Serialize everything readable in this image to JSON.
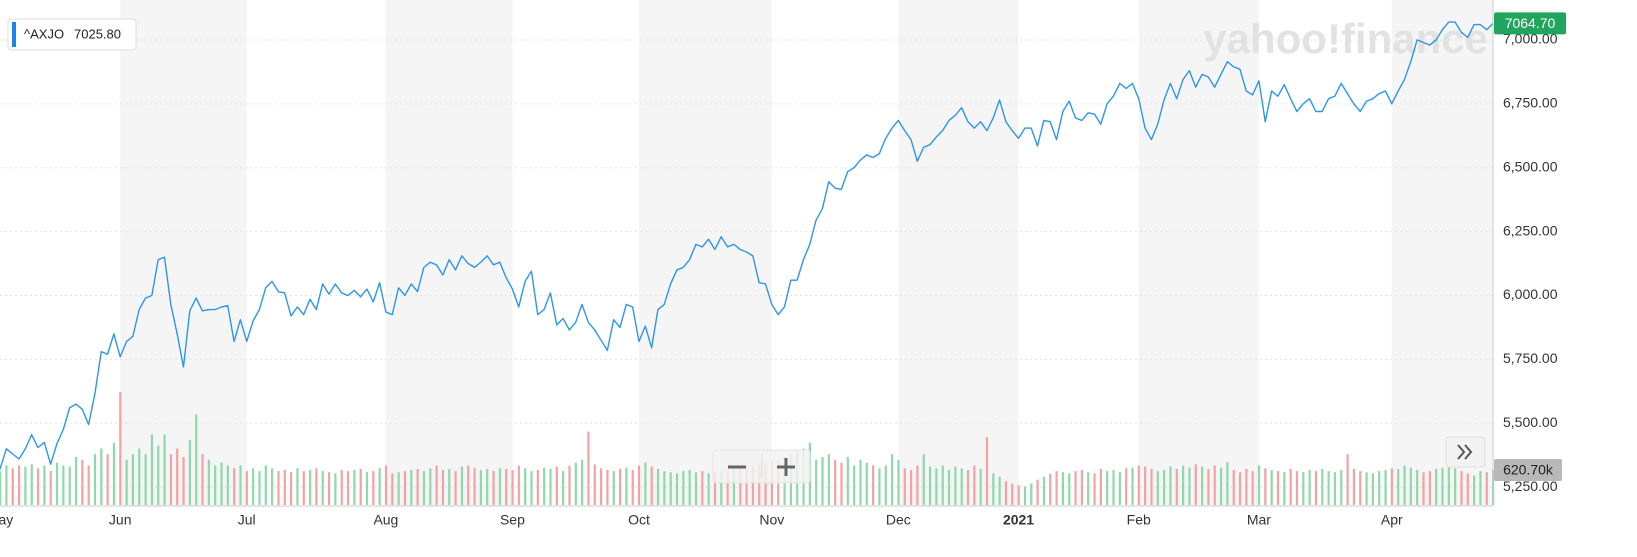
{
  "chart_data": {
    "type": "line",
    "watermark": "yahoo!finance",
    "legend_value": "7025.80",
    "categories": [
      "May",
      null,
      null,
      null,
      null,
      null,
      null,
      null,
      null,
      null,
      null,
      null,
      null,
      null,
      null,
      null,
      null,
      null,
      null,
      "Jun",
      null,
      null,
      null,
      null,
      null,
      null,
      null,
      null,
      null,
      null,
      null,
      null,
      null,
      null,
      null,
      null,
      null,
      null,
      null,
      "Jul",
      null,
      null,
      null,
      null,
      null,
      null,
      null,
      null,
      null,
      null,
      null,
      null,
      null,
      null,
      null,
      null,
      null,
      null,
      null,
      null,
      null,
      "Aug",
      null,
      null,
      null,
      null,
      null,
      null,
      null,
      null,
      null,
      null,
      null,
      null,
      null,
      null,
      null,
      null,
      null,
      null,
      null,
      "Sep",
      null,
      null,
      null,
      null,
      null,
      null,
      null,
      null,
      null,
      null,
      null,
      null,
      null,
      null,
      null,
      null,
      null,
      null,
      null,
      "Oct",
      null,
      null,
      null,
      null,
      null,
      null,
      null,
      null,
      null,
      null,
      null,
      null,
      null,
      null,
      null,
      null,
      null,
      null,
      null,
      null,
      "Nov",
      null,
      null,
      null,
      null,
      null,
      null,
      null,
      null,
      null,
      null,
      null,
      null,
      null,
      null,
      null,
      null,
      null,
      null,
      null,
      "Dec",
      null,
      null,
      null,
      null,
      null,
      null,
      null,
      null,
      null,
      null,
      null,
      null,
      null,
      null,
      null,
      null,
      null,
      null,
      "2021",
      null,
      null,
      null,
      null,
      null,
      null,
      null,
      null,
      null,
      null,
      null,
      null,
      null,
      null,
      null,
      null,
      null,
      null,
      "Feb",
      null,
      null,
      null,
      null,
      null,
      null,
      null,
      null,
      null,
      null,
      null,
      null,
      null,
      null,
      null,
      null,
      null,
      null,
      "Mar",
      null,
      null,
      null,
      null,
      null,
      null,
      null,
      null,
      null,
      null,
      null,
      null,
      null,
      null,
      null,
      null,
      null,
      null,
      null,
      null,
      "Apr",
      null,
      null,
      null,
      null,
      null,
      null,
      null,
      null,
      null,
      null,
      null,
      null,
      null,
      null,
      null,
      null
    ],
    "series": [
      {
        "name": "^AXJO",
        "color": "#2d96eb",
        "last_label": "7064.70",
        "label_color": "#21a55e",
        "values": [
          5320,
          5400,
          5380,
          5360,
          5400,
          5455,
          5405,
          5425,
          5340,
          5420,
          5475,
          5560,
          5575,
          5555,
          5495,
          5615,
          5780,
          5770,
          5850,
          5760,
          5820,
          5840,
          5945,
          5990,
          6000,
          6140,
          6150,
          5965,
          5850,
          5720,
          5940,
          5990,
          5940,
          5945,
          5945,
          5955,
          5960,
          5820,
          5905,
          5820,
          5900,
          5945,
          6030,
          6055,
          6015,
          6010,
          5920,
          5955,
          5925,
          5985,
          5945,
          6045,
          6005,
          6045,
          6010,
          6000,
          6020,
          5995,
          6025,
          5975,
          6050,
          5935,
          5925,
          6030,
          6000,
          6045,
          6015,
          6110,
          6130,
          6120,
          6080,
          6140,
          6100,
          6155,
          6125,
          6110,
          6130,
          6155,
          6120,
          6130,
          6070,
          6025,
          5955,
          6055,
          6095,
          5925,
          5945,
          6010,
          5885,
          5910,
          5865,
          5895,
          5965,
          5895,
          5865,
          5825,
          5785,
          5905,
          5875,
          5965,
          5955,
          5820,
          5880,
          5795,
          5945,
          5965,
          6045,
          6100,
          6110,
          6140,
          6200,
          6190,
          6220,
          6180,
          6230,
          6190,
          6200,
          6180,
          6170,
          6155,
          6050,
          6045,
          5965,
          5925,
          5955,
          6060,
          6060,
          6140,
          6200,
          6295,
          6340,
          6445,
          6420,
          6415,
          6485,
          6500,
          6530,
          6550,
          6540,
          6555,
          6615,
          6655,
          6685,
          6645,
          6610,
          6525,
          6580,
          6590,
          6620,
          6645,
          6685,
          6705,
          6735,
          6680,
          6655,
          6680,
          6645,
          6695,
          6765,
          6680,
          6645,
          6615,
          6655,
          6655,
          6585,
          6685,
          6680,
          6610,
          6720,
          6760,
          6695,
          6685,
          6715,
          6710,
          6670,
          6750,
          6780,
          6830,
          6810,
          6830,
          6770,
          6655,
          6610,
          6670,
          6765,
          6830,
          6770,
          6845,
          6880,
          6815,
          6865,
          6855,
          6815,
          6865,
          6915,
          6895,
          6885,
          6800,
          6785,
          6840,
          6680,
          6800,
          6780,
          6825,
          6770,
          6720,
          6750,
          6770,
          6720,
          6720,
          6770,
          6780,
          6830,
          6790,
          6750,
          6720,
          6760,
          6770,
          6790,
          6800,
          6750,
          6800,
          6845,
          6915,
          7000,
          6990,
          6980,
          7000,
          7040,
          7070,
          7070,
          7030,
          7010,
          7060,
          7060,
          7040,
          7064.7
        ]
      },
      {
        "type": "bar",
        "axis": "y2",
        "up_color": "#8ed8ac",
        "down_color": "#f3a2a4",
        "last_label": "620.70k",
        "values": [
          600000,
          700000,
          650000,
          700000,
          680000,
          720000,
          650000,
          700000,
          600000,
          750000,
          700000,
          680000,
          850000,
          800000,
          700000,
          900000,
          1000000,
          900000,
          1100000,
          2000000,
          800000,
          900000,
          1000000,
          900000,
          1250000,
          1050000,
          1250000,
          900000,
          1000000,
          850000,
          1150000,
          1600000,
          900000,
          800000,
          700000,
          750000,
          700000,
          650000,
          700000,
          600000,
          650000,
          600000,
          700000,
          650000,
          600000,
          620000,
          580000,
          650000,
          600000,
          620000,
          650000,
          600000,
          580000,
          560000,
          620000,
          600000,
          620000,
          640000,
          580000,
          600000,
          650000,
          700000,
          560000,
          580000,
          600000,
          620000,
          640000,
          600000,
          650000,
          700000,
          620000,
          640000,
          600000,
          680000,
          700000,
          660000,
          620000,
          640000,
          600000,
          650000,
          640000,
          620000,
          700000,
          650000,
          600000,
          620000,
          660000,
          640000,
          680000,
          600000,
          700000,
          750000,
          800000,
          1300000,
          720000,
          650000,
          620000,
          600000,
          640000,
          660000,
          620000,
          700000,
          750000,
          680000,
          640000,
          600000,
          580000,
          560000,
          600000,
          620000,
          580000,
          600000,
          560000,
          580000,
          600000,
          620000,
          640000,
          660000,
          680000,
          700000,
          720000,
          740000,
          760000,
          800000,
          850000,
          900000,
          950000,
          1000000,
          1100000,
          800000,
          850000,
          900000,
          800000,
          750000,
          850000,
          700000,
          800000,
          750000,
          700000,
          650000,
          700000,
          900000,
          800000,
          650000,
          620000,
          700000,
          900000,
          680000,
          650000,
          700000,
          620000,
          680000,
          650000,
          620000,
          700000,
          640000,
          1200000,
          560000,
          500000,
          420000,
          380000,
          350000,
          330000,
          380000,
          450000,
          500000,
          550000,
          600000,
          580000,
          560000,
          600000,
          620000,
          580000,
          560000,
          640000,
          600000,
          620000,
          580000,
          650000,
          660000,
          700000,
          680000,
          640000,
          600000,
          620000,
          680000,
          640000,
          700000,
          660000,
          720000,
          680000,
          640000,
          700000,
          660000,
          760000,
          620000,
          580000,
          640000,
          600000,
          700000,
          650000,
          620000,
          600000,
          580000,
          640000,
          600000,
          580000,
          620000,
          600000,
          640000,
          600000,
          580000,
          620000,
          900000,
          640000,
          600000,
          580000,
          560000,
          600000,
          620000,
          650000,
          640000,
          700000,
          660000,
          620000,
          580000,
          600000,
          640000,
          660000,
          700000,
          650000,
          600000,
          560000,
          520000,
          600000,
          580000,
          620700
        ]
      }
    ],
    "ylim": [
      5180,
      7125
    ],
    "yticks": [
      {
        "value": 5250,
        "label": "5,250.00"
      },
      {
        "value": 5500,
        "label": "5,500.00"
      },
      {
        "value": 5750,
        "label": "5,750.00"
      },
      {
        "value": 6000,
        "label": "6,000.00"
      },
      {
        "value": 6250,
        "label": "6,250.00"
      },
      {
        "value": 6500,
        "label": "6,500.00"
      },
      {
        "value": 6750,
        "label": "6,750.00"
      },
      {
        "value": 7000,
        "label": "7,000.00"
      }
    ],
    "y2lim": [
      0,
      8800000
    ],
    "grid": true
  }
}
